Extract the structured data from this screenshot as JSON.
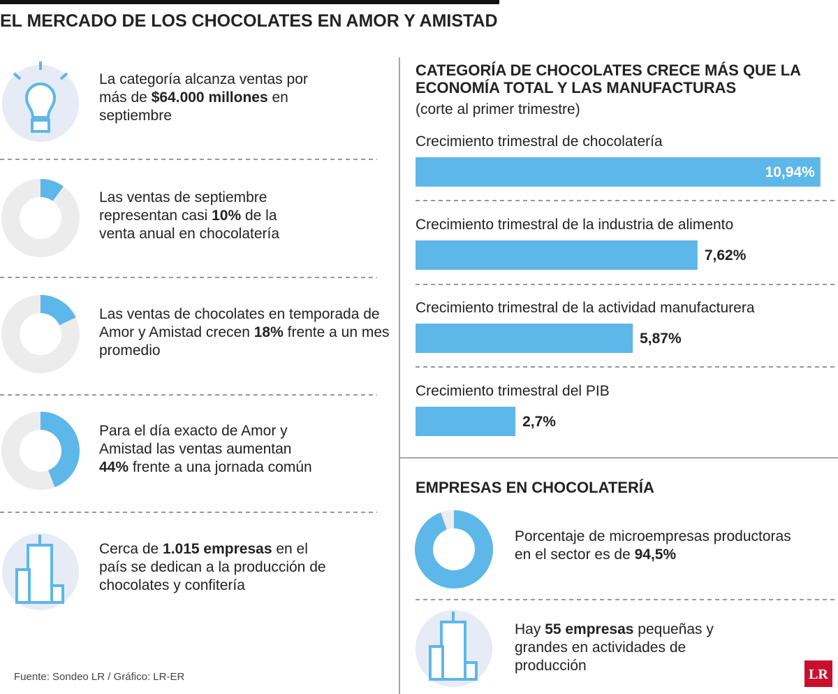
{
  "title": "EL MERCADO DE LOS CHOCOLATES EN AMOR Y AMISTAD",
  "facts": [
    {
      "before": "La categoría alcanza ventas por más de ",
      "bold": "$64.000 millones",
      "after": " en septiembre"
    },
    {
      "before": "Cerca de ",
      "bold": "1.015 empresas",
      "after": " en el país se dedican a la producción de chocolates y confitería"
    },
    {
      "before": "Hay ",
      "bold": "55 empresas",
      "after": " pequeñas y grandes en actividades de producción"
    }
  ],
  "section2_title": "EMPRESAS EN CHOCOLATERÍA",
  "source": "Fuente: Sondeo LR / Gráfico: LR-ER",
  "logo": "LR",
  "chart_data": [
    {
      "type": "bar",
      "title": "CATEGORÍA DE CHOCOLATES CRECE MÁS QUE LA ECONOMÍA TOTAL Y LAS MANUFACTURAS",
      "subtitle": "(corte al primer trimestre)",
      "categories": [
        "Crecimiento trimestral de chocolatería",
        "Crecimiento trimestral de la industria de alimento",
        "Crecimiento trimestral de la actividad manufacturera",
        "Crecimiento trimestral del PIB"
      ],
      "values": [
        10.94,
        7.62,
        5.87,
        2.7
      ],
      "value_labels": [
        "10,94%",
        "7,62%",
        "5,87%",
        "2,7%"
      ],
      "color": "#5db7e8",
      "xlim": [
        0,
        11
      ]
    },
    {
      "type": "donut",
      "before": "Las ventas de septiembre representan casi ",
      "values": [
        10
      ],
      "value_labels": [
        "10%"
      ],
      "after": " de la venta anual en chocolatería",
      "color": "#5db7e8"
    },
    {
      "type": "donut",
      "before": "Las ventas de chocolates en temporada de Amor y Amistad crecen ",
      "values": [
        18
      ],
      "value_labels": [
        "18%"
      ],
      "after": " frente a un mes promedio",
      "color": "#5db7e8"
    },
    {
      "type": "donut",
      "before": "Para el día exacto de Amor y Amistad las ventas aumentan ",
      "values": [
        44
      ],
      "value_labels": [
        "44%"
      ],
      "after": " frente a una jornada común",
      "color": "#5db7e8"
    },
    {
      "type": "donut",
      "before": "Porcentaje de microempresas productoras en el sector es de ",
      "values": [
        94.5
      ],
      "value_labels": [
        "94,5%"
      ],
      "after": "",
      "color": "#5db7e8"
    }
  ]
}
